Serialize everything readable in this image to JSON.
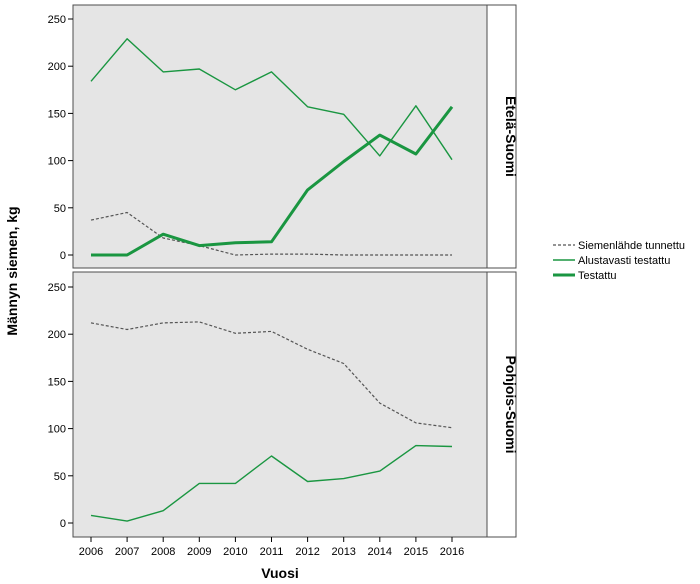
{
  "chart_data": {
    "type": "line",
    "xlabel": "Vuosi",
    "ylabel": "Männyn siemen, kg",
    "x": [
      2006,
      2007,
      2008,
      2009,
      2010,
      2011,
      2012,
      2013,
      2014,
      2015,
      2016
    ],
    "ylim": [
      0,
      250
    ],
    "yticks": [
      0,
      50,
      100,
      150,
      200,
      250
    ],
    "legend_position": "right",
    "grid": false,
    "legend": [
      {
        "name": "Siemenlähde tunnettu",
        "color": "#555555",
        "style": "dashed"
      },
      {
        "name": "Alustavasti testattu",
        "color": "#1a9641",
        "style": "solid-thin"
      },
      {
        "name": "Testattu",
        "color": "#1a9641",
        "style": "solid-thick"
      }
    ],
    "panels": [
      {
        "label": "Etelä-Suomi",
        "series": [
          {
            "name": "Siemenlähde tunnettu",
            "values": [
              37,
              45,
              18,
              10,
              0,
              1,
              1,
              0,
              0,
              0,
              0
            ]
          },
          {
            "name": "Alustavasti testattu",
            "values": [
              184,
              229,
              194,
              197,
              175,
              194,
              157,
              149,
              105,
              158,
              101
            ]
          },
          {
            "name": "Testattu",
            "values": [
              0,
              0,
              22,
              10,
              13,
              14,
              69,
              99,
              127,
              107,
              157
            ]
          }
        ]
      },
      {
        "label": "Pohjois-Suomi",
        "series": [
          {
            "name": "Siemenlähde tunnettu",
            "values": [
              212,
              205,
              212,
              213,
              201,
              203,
              184,
              169,
              127,
              106,
              101
            ]
          },
          {
            "name": "Alustavasti testattu",
            "values": [
              8,
              2,
              13,
              42,
              42,
              71,
              44,
              47,
              55,
              82,
              81
            ]
          }
        ]
      }
    ]
  }
}
